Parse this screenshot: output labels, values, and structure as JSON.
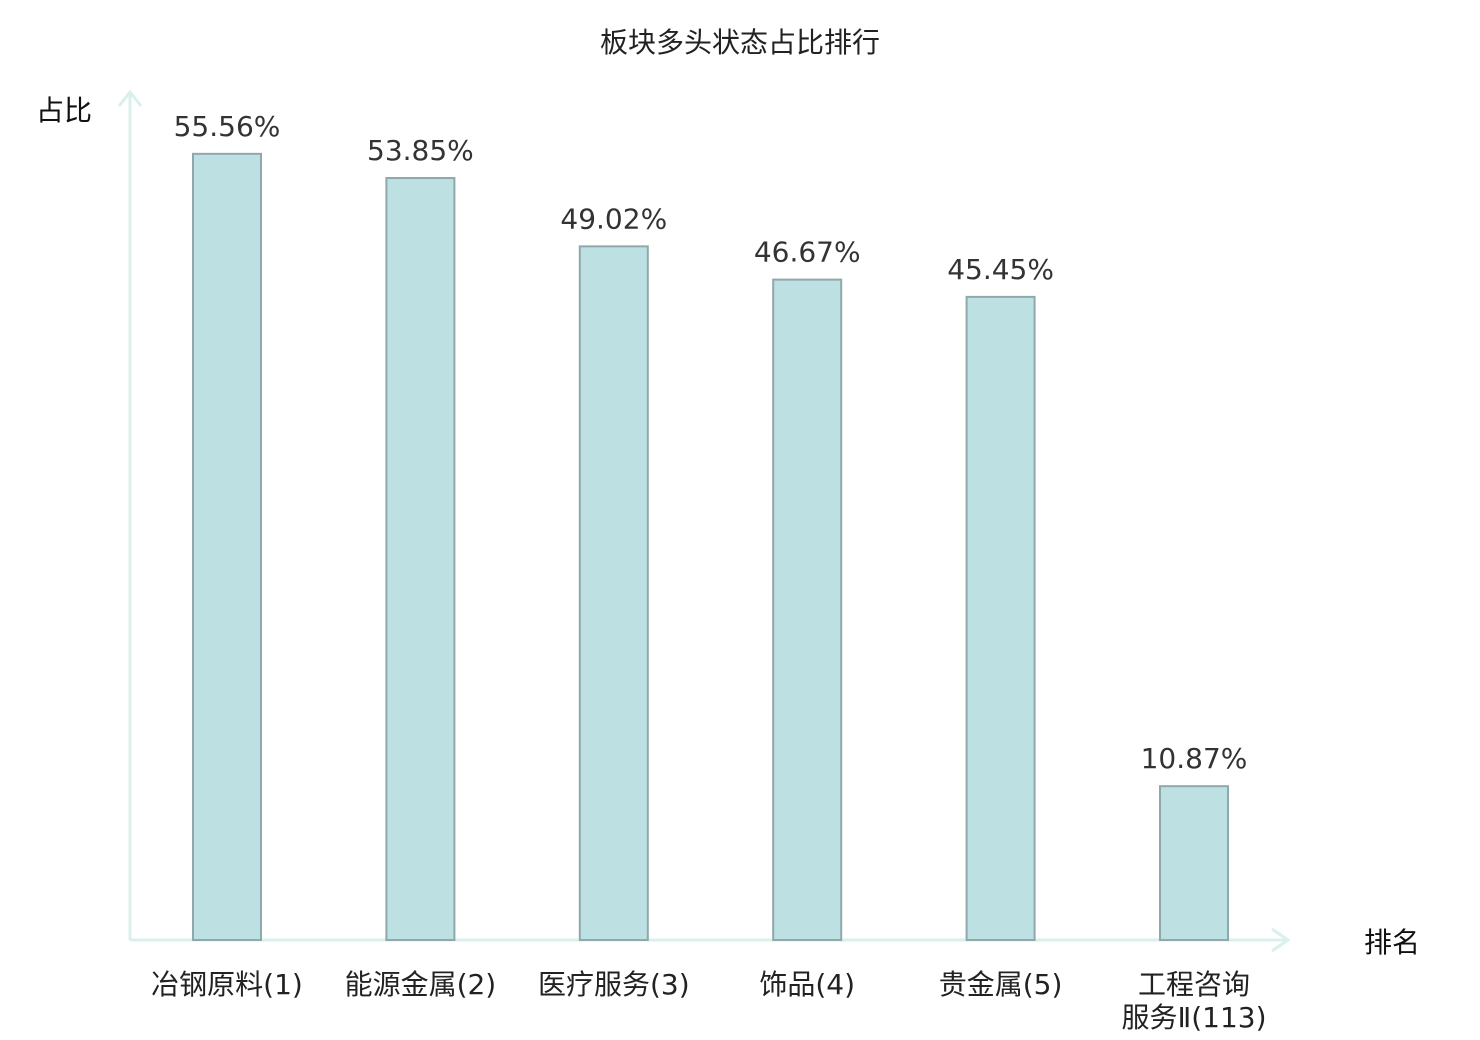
{
  "chart_data": {
    "type": "bar",
    "title": "板块多头状态占比排行",
    "ylabel": "占比",
    "xlabel": "排名",
    "ylim": [
      0,
      62
    ],
    "grid": false,
    "categories": [
      [
        "冶钢原料(1)"
      ],
      [
        "能源金属(2)"
      ],
      [
        "医疗服务(3)"
      ],
      [
        "饰品(4)"
      ],
      [
        "贵金属(5)"
      ],
      [
        "工程咨询",
        "服务Ⅱ(113)"
      ]
    ],
    "values": [
      55.56,
      53.85,
      49.02,
      46.67,
      45.45,
      10.87
    ],
    "value_labels": [
      "55.56%",
      "53.85%",
      "49.02%",
      "46.67%",
      "45.45%",
      "10.87%"
    ],
    "highlight_index": 5,
    "colors": {
      "bar_fill": "#bde0e3",
      "bar_stroke": "#8fa8ab",
      "axis": "#d9f0ec",
      "label": "#222222",
      "highlight_label": "#e8141c"
    }
  }
}
